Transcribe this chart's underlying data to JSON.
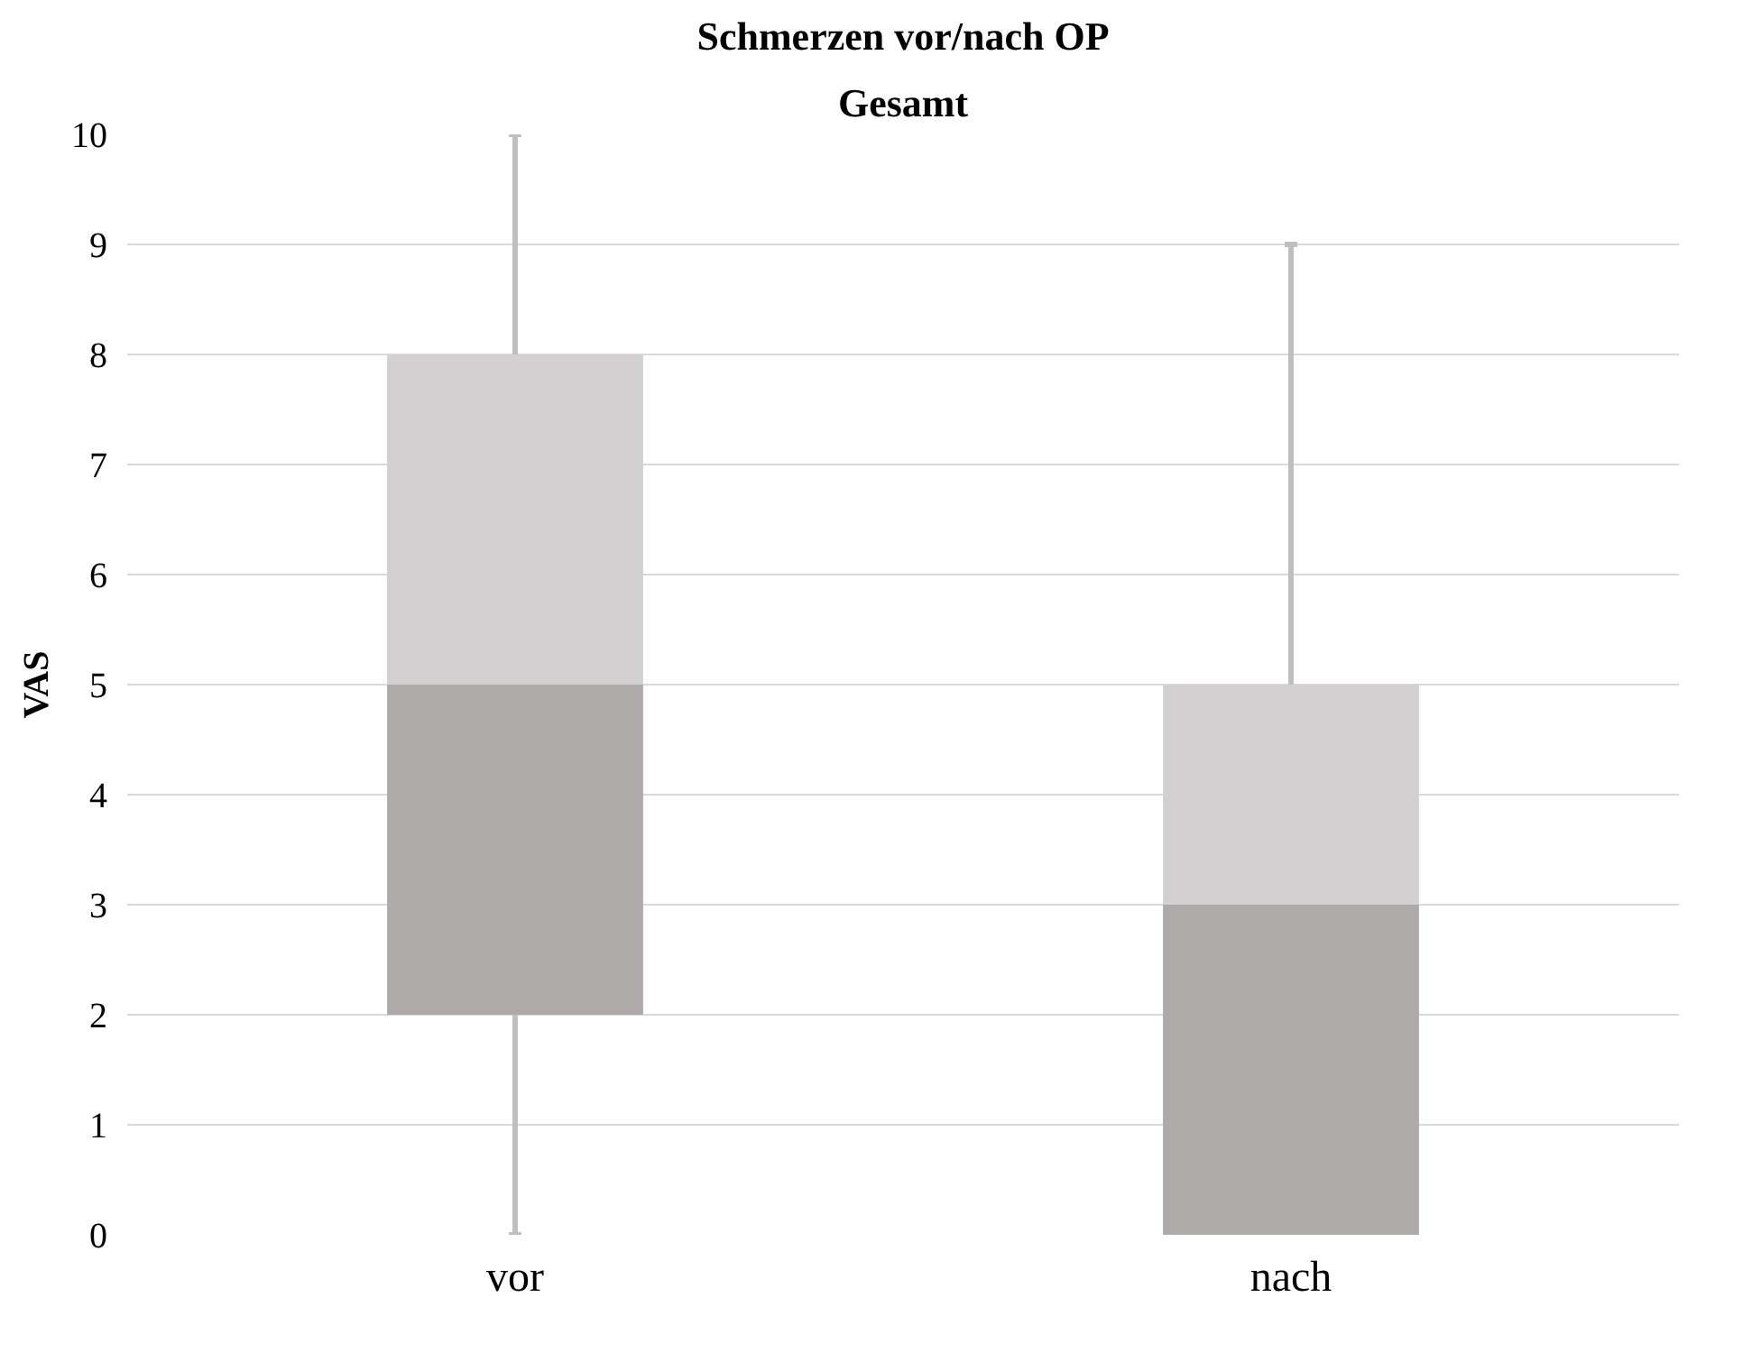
{
  "chart_data": {
    "type": "box",
    "title": "Schmerzen vor/nach OP",
    "subtitle": "Gesamt",
    "ylabel": "VAS",
    "categories": [
      "vor",
      "nach"
    ],
    "series": [
      {
        "color": "#aeaaaa",
        "boxes": [
          {
            "low": 0,
            "q1": 2,
            "median": 5,
            "q3": 8,
            "high": 10
          },
          {
            "low": 0,
            "q1": 0,
            "median": 3,
            "q3": 5,
            "high": 9
          }
        ]
      }
    ],
    "ylim": [
      0,
      10
    ],
    "yticks": [
      0,
      1,
      2,
      3,
      4,
      5,
      6,
      7,
      8,
      9,
      10
    ],
    "grid": "y"
  }
}
